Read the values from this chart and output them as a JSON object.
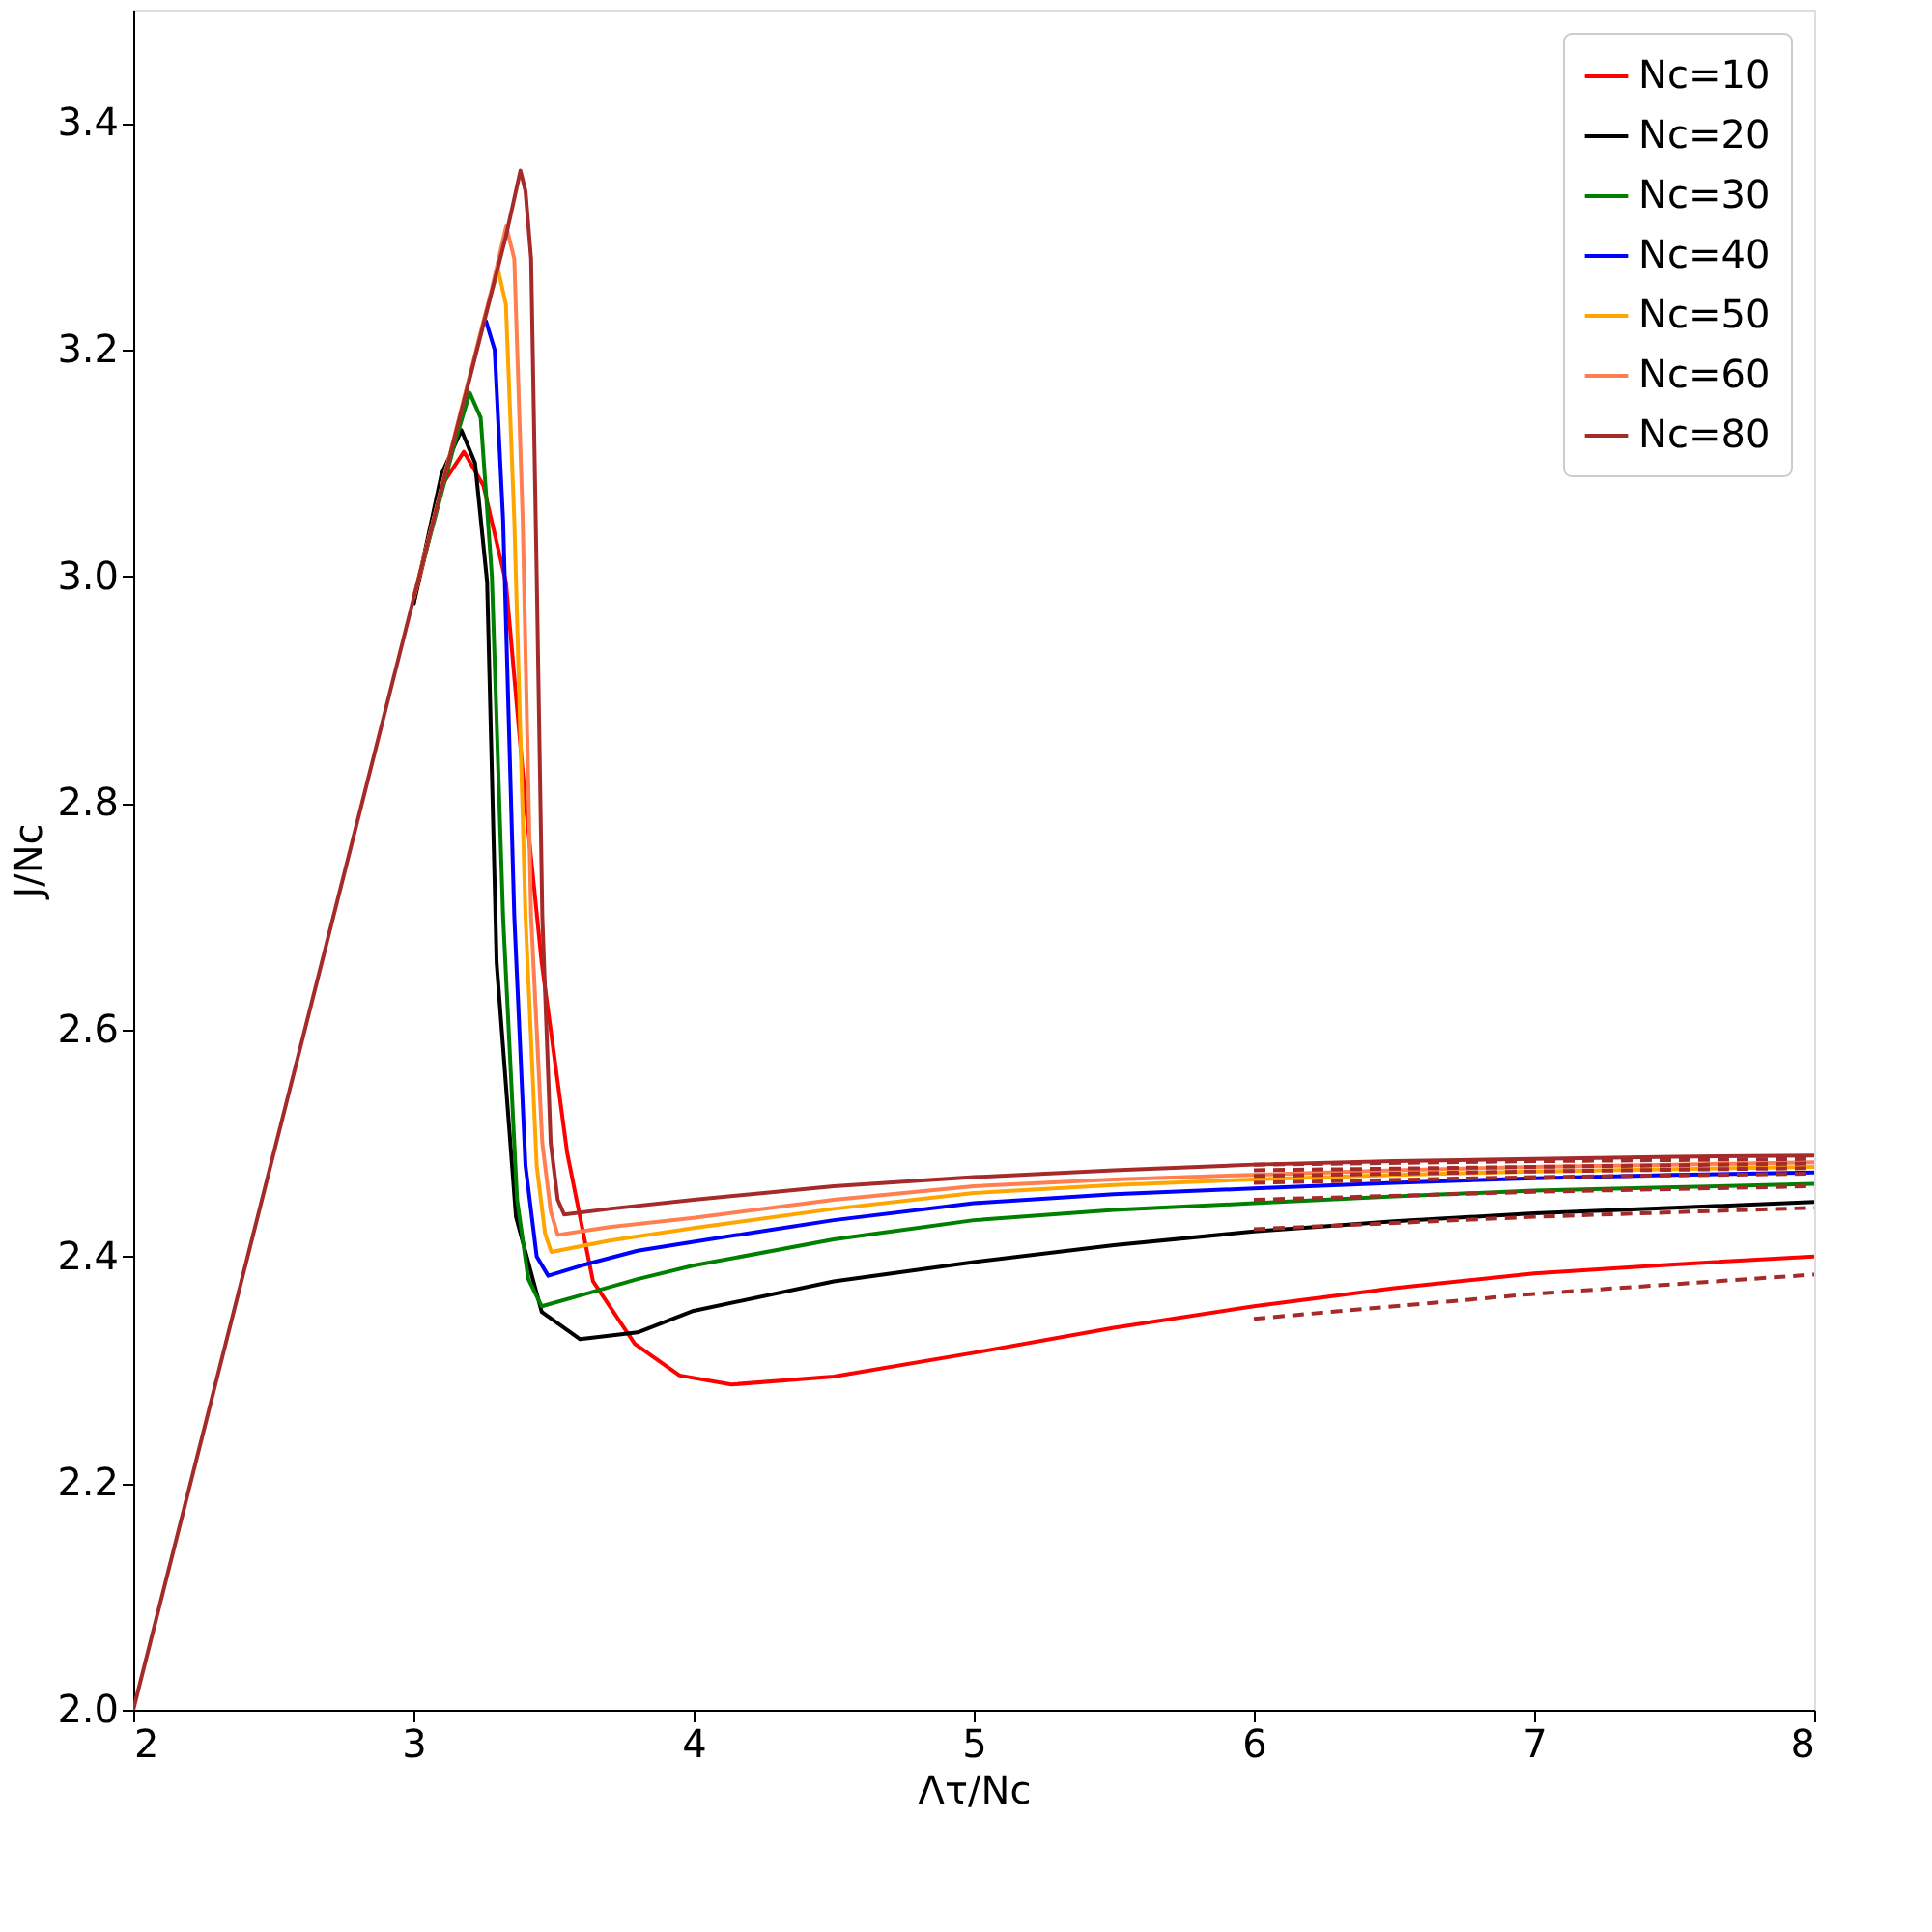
{
  "chart_data": {
    "type": "line",
    "xlabel": "Λτ/Nc",
    "ylabel": "J/Nc",
    "xlim": [
      2,
      8
    ],
    "ylim": [
      2,
      3.5
    ],
    "xticks": [
      2,
      3,
      4,
      5,
      6,
      7,
      8
    ],
    "yticks": [
      {
        "value": 2,
        "label": "2.0"
      },
      {
        "value": 2.2,
        "label": "2.2"
      },
      {
        "value": 2.4,
        "label": "2.4"
      },
      {
        "value": 2.6,
        "label": "2.6"
      },
      {
        "value": 2.8,
        "label": "2.8"
      },
      {
        "value": 3,
        "label": "3.0"
      },
      {
        "value": 3.2,
        "label": "3.2"
      },
      {
        "value": 3.4,
        "label": "3.4"
      }
    ],
    "grid": false,
    "legend": "top right",
    "line_style": "solid",
    "series": [
      {
        "name": "Nc=10",
        "color": "#ff0000",
        "x": [
          3.0,
          3.1,
          3.18,
          3.25,
          3.33,
          3.4,
          3.458,
          3.549,
          3.641,
          3.79,
          3.95,
          4.135,
          4.5,
          5,
          5.5,
          6,
          6.5,
          7,
          7.5,
          8
        ],
        "values": [
          2.975,
          3.08,
          3.11,
          3.08,
          2.995,
          2.8,
          2.659,
          2.491,
          2.378,
          2.323,
          2.295,
          2.287,
          2.294,
          2.315,
          2.337,
          2.356,
          2.372,
          2.385,
          2.393,
          2.4
        ]
      },
      {
        "name": "Nc=20",
        "color": "#000000",
        "x": [
          3.0,
          3.1,
          3.171,
          3.22,
          3.263,
          3.297,
          3.366,
          3.458,
          3.595,
          3.8,
          4,
          4.5,
          5,
          5.5,
          6,
          6.5,
          7,
          7.5,
          8
        ],
        "values": [
          2.975,
          3.09,
          3.129,
          3.1,
          2.995,
          2.659,
          2.435,
          2.351,
          2.327,
          2.333,
          2.352,
          2.378,
          2.395,
          2.41,
          2.422,
          2.431,
          2.438,
          2.443,
          2.448
        ]
      },
      {
        "name": "Nc=30",
        "color": "#008000",
        "x": [
          3.0,
          3.15,
          3.201,
          3.24,
          3.28,
          3.32,
          3.37,
          3.41,
          3.458,
          3.6,
          3.8,
          4,
          4.5,
          5,
          5.5,
          6,
          6.5,
          7,
          7.5,
          8
        ],
        "values": [
          2.98,
          3.12,
          3.162,
          3.14,
          3.0,
          2.7,
          2.45,
          2.38,
          2.356,
          2.366,
          2.38,
          2.392,
          2.415,
          2.432,
          2.441,
          2.447,
          2.453,
          2.458,
          2.461,
          2.464
        ]
      },
      {
        "name": "Nc=40",
        "color": "#0000ff",
        "x": [
          3.258,
          3.29,
          3.32,
          3.36,
          3.4,
          3.44,
          3.481,
          3.6,
          3.8,
          4,
          4.5,
          5,
          5.5,
          6,
          6.5,
          7,
          7.5,
          8
        ],
        "values": [
          3.226,
          3.2,
          3.05,
          2.7,
          2.48,
          2.4,
          2.383,
          2.392,
          2.405,
          2.413,
          2.432,
          2.447,
          2.455,
          2.46,
          2.465,
          2.469,
          2.472,
          2.474
        ]
      },
      {
        "name": "Nc=50",
        "color": "#ffa500",
        "x": [
          3.0,
          3.25,
          3.302,
          3.33,
          3.36,
          3.4,
          3.44,
          3.47,
          3.492,
          3.7,
          4,
          4.5,
          5,
          5.5,
          6,
          6.5,
          7,
          7.5,
          8
        ],
        "values": [
          2.98,
          3.225,
          3.271,
          3.24,
          3.05,
          2.7,
          2.48,
          2.42,
          2.404,
          2.414,
          2.425,
          2.442,
          2.456,
          2.463,
          2.468,
          2.472,
          2.475,
          2.477,
          2.479
        ]
      },
      {
        "name": "Nc=60",
        "color": "#ff7f50",
        "x": [
          3.0,
          3.28,
          3.331,
          3.36,
          3.39,
          3.42,
          3.46,
          3.49,
          3.515,
          3.7,
          4,
          4.5,
          5,
          5.5,
          6,
          6.5,
          7,
          7.5,
          8
        ],
        "values": [
          2.98,
          3.254,
          3.309,
          3.28,
          3.05,
          2.7,
          2.5,
          2.44,
          2.419,
          2.426,
          2.434,
          2.45,
          2.462,
          2.468,
          2.472,
          2.476,
          2.479,
          2.481,
          2.483
        ]
      },
      {
        "name": "Nc=80",
        "color": "#a52a2a",
        "x": [
          2,
          2.5,
          3.0,
          3.33,
          3.382,
          3.4,
          3.42,
          3.44,
          3.46,
          3.49,
          3.515,
          3.538,
          3.7,
          4,
          4.5,
          5,
          5.5,
          6,
          6.5,
          7,
          7.5,
          8
        ],
        "values": [
          2,
          2.49,
          2.98,
          3.3,
          3.358,
          3.34,
          3.28,
          3.0,
          2.7,
          2.5,
          2.45,
          2.437,
          2.442,
          2.45,
          2.462,
          2.47,
          2.476,
          2.481,
          2.484,
          2.486,
          2.488,
          2.489
        ]
      },
      {
        "color": "#a52a2a",
        "line_style": "dashed",
        "x": [
          6,
          7,
          8
        ],
        "values": [
          2.345,
          2.367,
          2.384
        ]
      },
      {
        "color": "#a52a2a",
        "line_style": "dashed",
        "x": [
          6,
          7,
          8
        ],
        "values": [
          2.424,
          2.435,
          2.443
        ]
      },
      {
        "color": "#a52a2a",
        "line_style": "dashed",
        "x": [
          6,
          7,
          8
        ],
        "values": [
          2.45,
          2.457,
          2.462
        ]
      },
      {
        "color": "#a52a2a",
        "line_style": "dashed",
        "x": [
          6,
          7,
          8
        ],
        "values": [
          2.465,
          2.47,
          2.473
        ]
      },
      {
        "color": "#a52a2a",
        "line_style": "dashed",
        "x": [
          6,
          7,
          8
        ],
        "values": [
          2.471,
          2.475,
          2.478
        ]
      },
      {
        "color": "#a52a2a",
        "line_style": "dashed",
        "x": [
          6,
          7,
          8
        ],
        "values": [
          2.476,
          2.479,
          2.482
        ]
      },
      {
        "color": "#a52a2a",
        "line_style": "dashed",
        "x": [
          6,
          7,
          8
        ],
        "values": [
          2.481,
          2.484,
          2.486
        ]
      }
    ]
  }
}
